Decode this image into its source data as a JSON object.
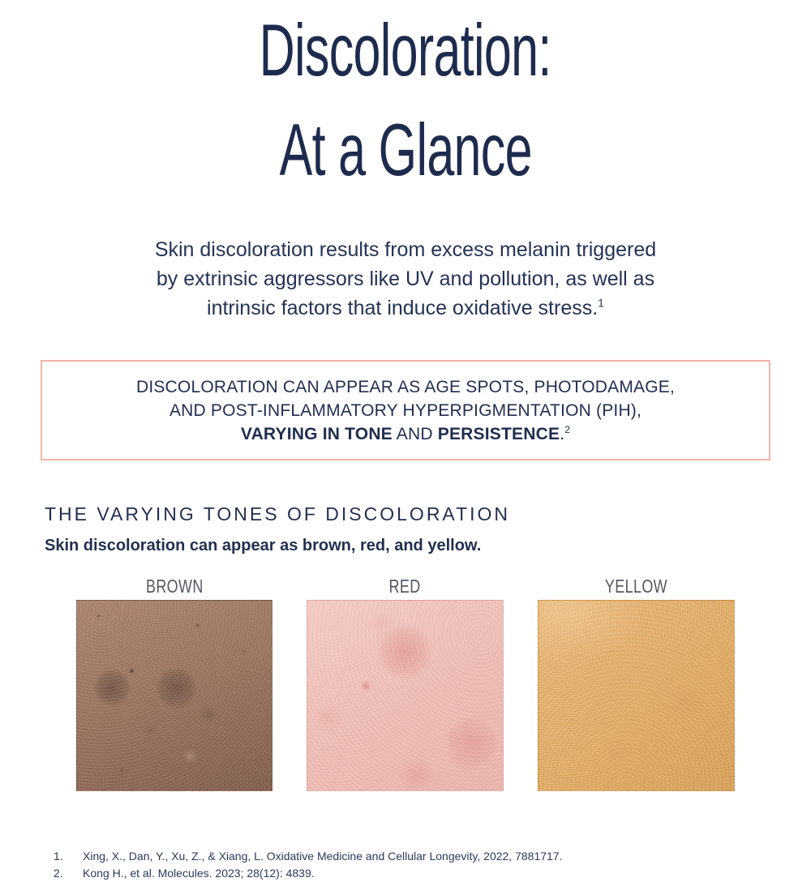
{
  "title": {
    "line1": "Discoloration:",
    "line2": "At a Glance"
  },
  "intro": {
    "lines": [
      "Skin discoloration results from excess melanin triggered",
      "by extrinsic aggressors like UV and pollution, as well as",
      "intrinsic factors that induce oxidative stress."
    ],
    "citation": "1"
  },
  "callout": {
    "line1": "DISCOLORATION CAN APPEAR AS AGE SPOTS, PHOTODAMAGE,",
    "line2": "AND POST-INFLAMMATORY HYPERPIGMENTATION (PIH),",
    "line3_bold1": "VARYING IN TONE",
    "line3_mid": " AND ",
    "line3_bold2": "PERSISTENCE",
    "line3_period": ".",
    "citation": "2",
    "border_color": "#f2b4a5"
  },
  "tones": {
    "heading": "THE VARYING TONES OF DISCOLORATION",
    "subheading": "Skin discoloration can appear as brown, red, and yellow.",
    "swatches": [
      {
        "label": "BROWN",
        "base_color": "#97705c",
        "description": "skin-photo-brown-discoloration"
      },
      {
        "label": "RED",
        "base_color": "#eebab3",
        "description": "skin-photo-red-discoloration"
      },
      {
        "label": "YELLOW",
        "base_color": "#dda75f",
        "description": "skin-photo-yellow-discoloration"
      }
    ]
  },
  "footnotes": [
    {
      "num": "1.",
      "text": "Xing, X., Dan, Y., Xu, Z., & Xiang, L. Oxidative Medicine and Cellular Longevity, 2022, 7881717."
    },
    {
      "num": "2.",
      "text": "Kong H., et al. Molecules. 2023; 28(12): 4839."
    }
  ],
  "colors": {
    "text_navy": "#1d2b4d",
    "label_gray": "#54585f",
    "callout_border": "#f2b4a5"
  }
}
